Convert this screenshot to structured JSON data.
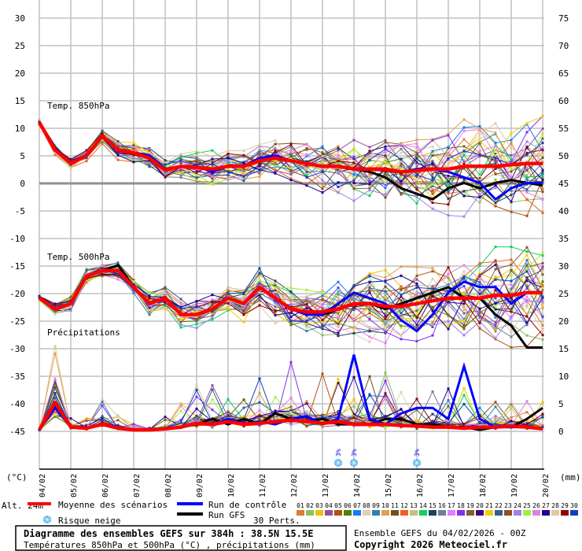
{
  "chart_data": {
    "type": "line",
    "title": "Diagramme des ensembles GEFS sur 384h : 38.5N 15.5E",
    "subtitle": "Températures 850hPa et 500hPa (°C) , précipitations (mm)",
    "run_info": "Ensemble GEFS du 04/02/2026 - 00Z",
    "copyright": "Copyright 2026 Meteociel.fr",
    "left_axis_unit": "(°C)",
    "right_axis_unit": "(mm)",
    "altitude": "Alt. 24m",
    "ylim_left": [
      -45,
      30
    ],
    "ylim_right": [
      0,
      75
    ],
    "left_ticks": [
      "30",
      "25",
      "20",
      "15",
      "10",
      "5",
      "0",
      "-5",
      "-10",
      "-15",
      "-20",
      "-25",
      "-30",
      "-35",
      "-40",
      "-45"
    ],
    "right_ticks": [
      "75",
      "70",
      "65",
      "60",
      "55",
      "50",
      "45",
      "40",
      "35",
      "30",
      "25",
      "20",
      "15",
      "10",
      "5",
      "0"
    ],
    "x_labels": [
      "04/02",
      "05/02",
      "06/02",
      "07/02",
      "08/02",
      "09/02",
      "10/02",
      "11/02",
      "12/02",
      "13/02",
      "14/02",
      "15/02",
      "16/02",
      "17/02",
      "18/02",
      "19/02",
      "20/02"
    ],
    "time_step_hours": 12,
    "panel_labels": {
      "t850": "Temp. 850hPa",
      "t500": "Temp. 500hPa",
      "precip": "Précipitations"
    },
    "series": {
      "t850": {
        "mean": [
          11,
          6,
          3.5,
          5,
          8.5,
          6,
          5.5,
          4.5,
          2.3,
          3,
          2.8,
          2.5,
          3,
          3,
          4,
          4.5,
          4,
          3.5,
          3,
          3,
          2.5,
          2.5,
          2.5,
          2,
          2.2,
          2.5,
          2.5,
          3,
          3,
          3,
          3.3,
          3.5,
          3.5
        ],
        "control": [
          11,
          6.5,
          3.5,
          5,
          8.5,
          6,
          5.5,
          5,
          2.5,
          3,
          3,
          2,
          3,
          3,
          4.5,
          5,
          4,
          3.5,
          3,
          3,
          2.5,
          2.5,
          2.5,
          2,
          2.5,
          2.5,
          2,
          1,
          0,
          -3,
          -1,
          0,
          0
        ],
        "gfs": [
          11,
          6,
          3.5,
          5,
          8.5,
          6,
          5.5,
          5,
          2.5,
          3,
          2.8,
          2.5,
          3,
          3,
          4,
          4.5,
          4,
          3.5,
          3,
          3,
          2.5,
          2,
          1,
          -1,
          -2,
          -3,
          -1,
          0,
          -1,
          0,
          0.5,
          0,
          -0.5
        ],
        "spread": [
          0.5,
          1,
          0.8,
          0.8,
          1,
          1.2,
          1.3,
          1.5,
          1.5,
          1.6,
          1.8,
          2,
          2,
          2.2,
          2.3,
          2.5,
          2.8,
          3,
          3.2,
          3.5,
          3.8,
          4,
          4.2,
          4.5,
          4.6,
          4.8,
          5,
          5.2,
          5.5,
          5.8,
          6,
          6.2,
          6.2
        ]
      },
      "t500": {
        "mean": [
          -21,
          -23,
          -22,
          -17,
          -16,
          -16,
          -19,
          -22,
          -21,
          -24,
          -24,
          -23,
          -21,
          -22,
          -19,
          -21,
          -23,
          -23.5,
          -23.5,
          -23,
          -22,
          -22,
          -22.5,
          -22.5,
          -22,
          -21.5,
          -21,
          -21,
          -21,
          -20.5,
          -20.5,
          -20,
          -20
        ],
        "control": [
          -21,
          -23,
          -22,
          -17,
          -16,
          -16,
          -19,
          -22,
          -21,
          -24,
          -24,
          -23,
          -21,
          -22,
          -19,
          -21,
          -23,
          -24,
          -24,
          -22,
          -20,
          -21,
          -22,
          -25,
          -27,
          -24,
          -20,
          -18,
          -19,
          -19,
          -22,
          -20,
          -20
        ],
        "gfs": [
          -21,
          -23,
          -22,
          -17,
          -16,
          -15,
          -19,
          -22,
          -21,
          -24,
          -24,
          -23,
          -21,
          -22,
          -19,
          -21,
          -23,
          -24,
          -24,
          -23,
          -22,
          -22,
          -23,
          -22,
          -21,
          -20,
          -19,
          -21,
          -21,
          -24,
          -26,
          -30,
          -30
        ],
        "spread": [
          0.5,
          1,
          1,
          1,
          1,
          1.2,
          1.3,
          1.5,
          1.6,
          1.8,
          2,
          2,
          2.2,
          2.4,
          2.6,
          2.8,
          3,
          3.2,
          3.5,
          3.8,
          4,
          4.2,
          4.4,
          4.6,
          4.8,
          5,
          5.2,
          5.4,
          5.6,
          5.8,
          6,
          6,
          6
        ]
      },
      "precip": {
        "mean": [
          0,
          5,
          0.5,
          0.3,
          1,
          0.3,
          0,
          0,
          0.2,
          0.5,
          1.2,
          1,
          1.5,
          1,
          1.2,
          1.5,
          1.8,
          1.5,
          1.2,
          1.5,
          1,
          1,
          1,
          0.8,
          0.7,
          0.5,
          0.5,
          0.3,
          0.5,
          0.5,
          0.7,
          0.5,
          0.2
        ],
        "control": [
          0,
          4,
          0.5,
          0.3,
          1,
          0.3,
          0,
          0,
          0.2,
          0.5,
          1,
          1,
          2,
          1,
          1.5,
          1,
          2,
          2.5,
          1,
          2,
          13.7,
          2,
          1,
          3,
          4,
          4,
          2,
          11.6,
          2,
          0.5,
          0.5,
          0.5,
          0.2
        ],
        "gfs": [
          0,
          4.5,
          0.5,
          0.3,
          1,
          0.3,
          0,
          0,
          0.2,
          0.5,
          1,
          2,
          1,
          2,
          1,
          3,
          2,
          1.5,
          2,
          1,
          1,
          1,
          2,
          2,
          1,
          1,
          0.5,
          0.5,
          0,
          0.5,
          0.5,
          2,
          4
        ],
        "spread": [
          0,
          4,
          1,
          1,
          2,
          1,
          0.5,
          0.5,
          1,
          2,
          3,
          3,
          4,
          3,
          3,
          4,
          4,
          4,
          4,
          4,
          5,
          4,
          4,
          4,
          3,
          3,
          3,
          3,
          2,
          2,
          2,
          2,
          2
        ]
      }
    },
    "snow_risk": [
      {
        "time_index": 19,
        "label": "3%"
      },
      {
        "time_index": 20,
        "label": "3%"
      },
      {
        "time_index": 24,
        "label": "3%"
      }
    ]
  },
  "legend": {
    "mean_label": "Moyenne des scénarios",
    "control_label": "Run de contrôle",
    "gfs_label": "Run GFS",
    "snow_label": "Risque neige",
    "perts_label": "30 Perts.",
    "colors": {
      "mean": "#ff0000",
      "control": "#0000ff",
      "gfs": "#000000",
      "grid": "#c0c0c0",
      "snow": "#5ab8f0"
    },
    "perts": [
      {
        "id": "01",
        "color": "#e07b30"
      },
      {
        "id": "02",
        "color": "#8cc060"
      },
      {
        "id": "03",
        "color": "#f0c000"
      },
      {
        "id": "04",
        "color": "#9050a0"
      },
      {
        "id": "05",
        "color": "#b05010"
      },
      {
        "id": "06",
        "color": "#508000"
      },
      {
        "id": "07",
        "color": "#1080f0"
      },
      {
        "id": "08",
        "color": "#e0d0b0"
      },
      {
        "id": "09",
        "color": "#3080b0"
      },
      {
        "id": "10",
        "color": "#e0a050"
      },
      {
        "id": "11",
        "color": "#705020"
      },
      {
        "id": "12",
        "color": "#f06020"
      },
      {
        "id": "13",
        "color": "#c8c080"
      },
      {
        "id": "14",
        "color": "#10d060"
      },
      {
        "id": "15",
        "color": "#204060"
      },
      {
        "id": "16",
        "color": "#708090"
      },
      {
        "id": "17",
        "color": "#e080f0"
      },
      {
        "id": "18",
        "color": "#8030f0"
      },
      {
        "id": "19",
        "color": "#806030"
      },
      {
        "id": "20",
        "color": "#400080"
      },
      {
        "id": "21",
        "color": "#f0d000"
      },
      {
        "id": "22",
        "color": "#306090"
      },
      {
        "id": "23",
        "color": "#905020"
      },
      {
        "id": "24",
        "color": "#a080f0"
      },
      {
        "id": "25",
        "color": "#a0f040"
      },
      {
        "id": "26",
        "color": "#e080e0"
      },
      {
        "id": "27",
        "color": "#200090"
      },
      {
        "id": "28",
        "color": "#e0c8a0"
      },
      {
        "id": "29",
        "color": "#900000"
      },
      {
        "id": "30",
        "color": "#1040c0"
      }
    ]
  }
}
